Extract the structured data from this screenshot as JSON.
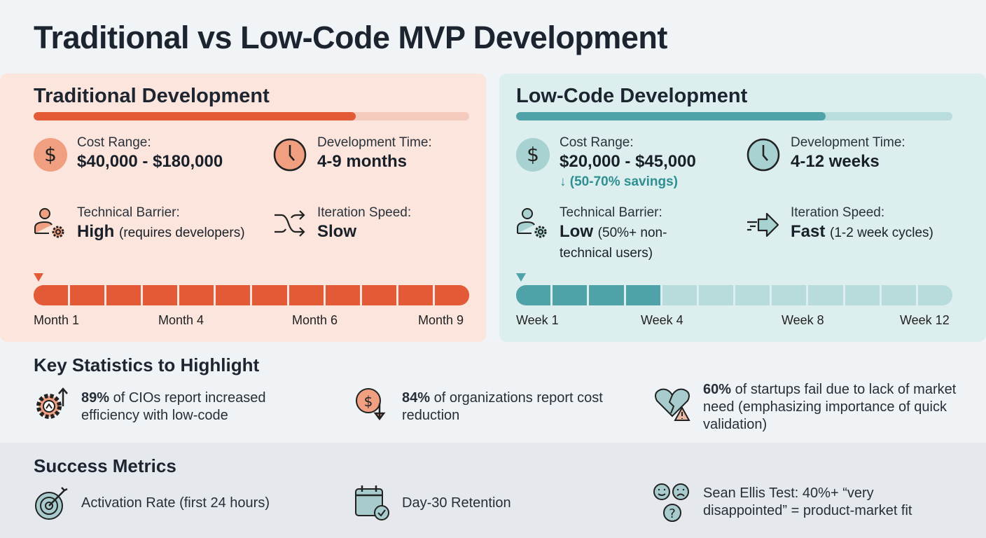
{
  "title": "Traditional vs Low-Code MVP Development",
  "traditional": {
    "title": "Traditional Development",
    "header_progress": 0.74,
    "cost_label": "Cost Range:",
    "cost_value": "$40,000 - $180,000",
    "time_label": "Development Time:",
    "time_value": "4-9 months",
    "barrier_label": "Technical Barrier:",
    "barrier_value": "High",
    "barrier_note": "(requires developers)",
    "speed_label": "Iteration Speed:",
    "speed_value": "Slow",
    "timeline": {
      "segments": 12,
      "filled": 12,
      "ticks": [
        "Month 1",
        "Month 4",
        "Month 6",
        "Month 9"
      ]
    },
    "accent": "#e25a36"
  },
  "lowcode": {
    "title": "Low-Code Development",
    "header_progress": 0.71,
    "cost_label": "Cost Range:",
    "cost_value": "$20,000 - $45,000",
    "savings": "↓ (50-70% savings)",
    "time_label": "Development Time:",
    "time_value": "4-12 weeks",
    "barrier_label": "Technical Barrier:",
    "barrier_value": "Low",
    "barrier_note": "(50%+ non-technical users)",
    "speed_label": "Iteration Speed:",
    "speed_value": "Fast",
    "speed_note": "(1-2 week cycles)",
    "timeline": {
      "segments": 12,
      "filled": 4,
      "ticks": [
        "Week 1",
        "Week 4",
        "Week 8",
        "Week 12"
      ]
    },
    "accent": "#4fa3a8"
  },
  "stats": {
    "heading": "Key Statistics to Highlight",
    "items": [
      {
        "pct": "89%",
        "text": " of CIOs report increased efficiency with low-code"
      },
      {
        "pct": "84%",
        "text": " of organizations report cost reduction"
      },
      {
        "pct": "60%",
        "text": " of startups fail due to lack of market need (emphasizing importance of quick validation)"
      }
    ]
  },
  "metrics": {
    "heading": "Success Metrics",
    "items": [
      {
        "text": "Activation Rate (first 24 hours)"
      },
      {
        "text": "Day-30 Retention"
      },
      {
        "text": "Sean Ellis Test: 40%+ “very disappointed” = product-market fit"
      }
    ]
  }
}
